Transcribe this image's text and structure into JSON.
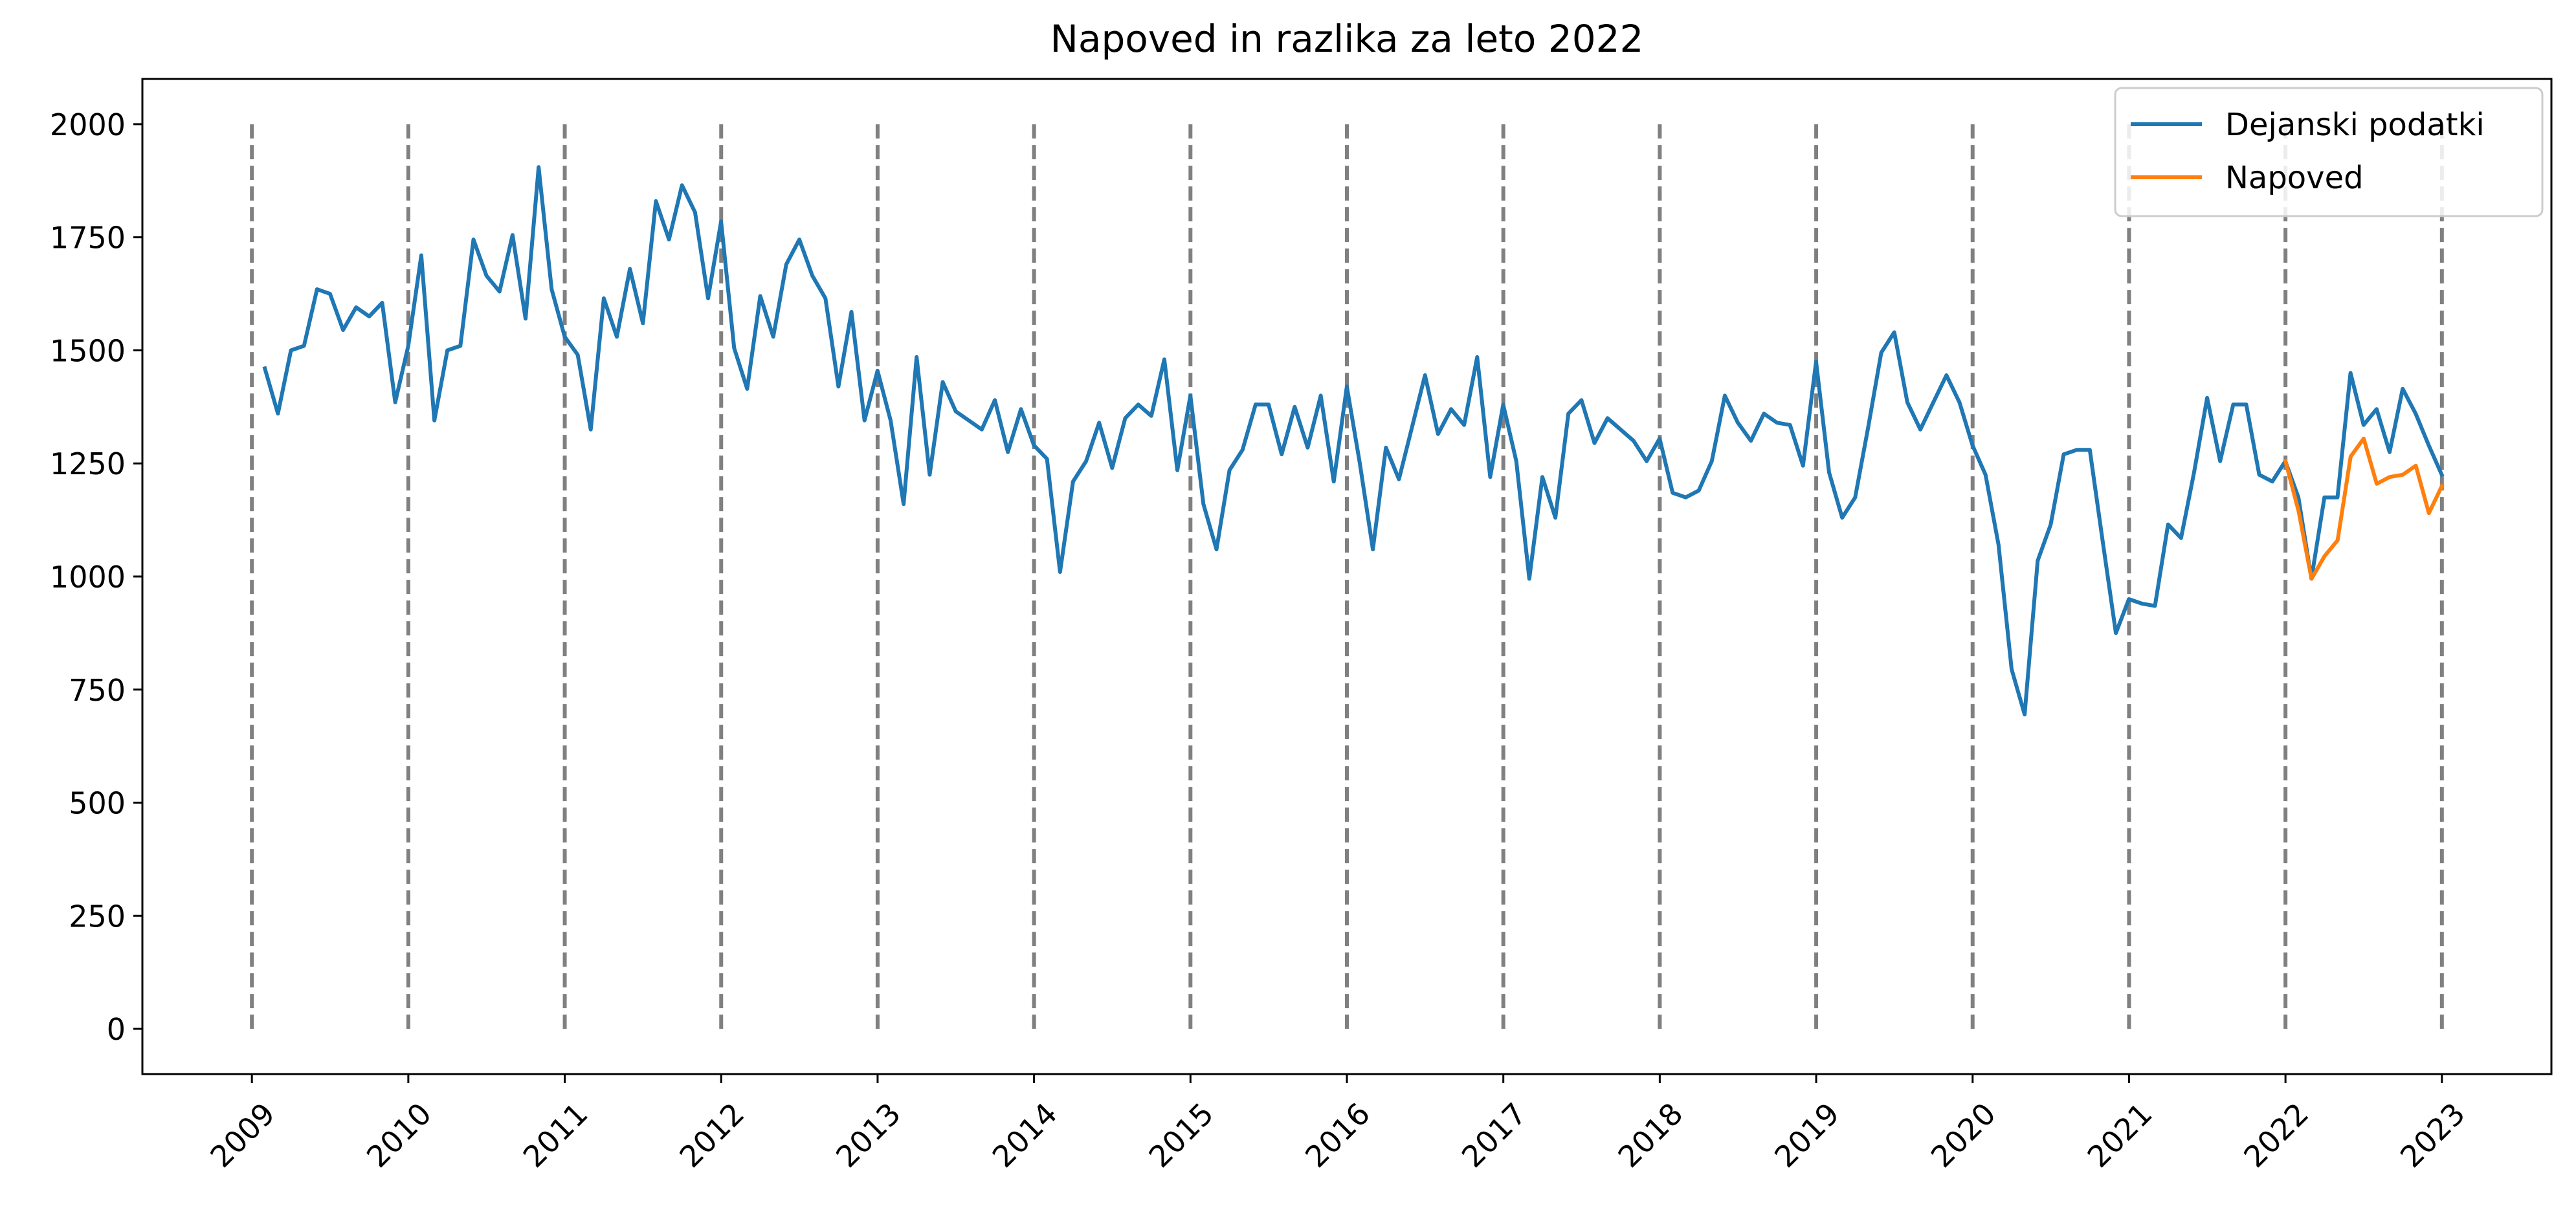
{
  "chart_data": {
    "type": "line",
    "title": "Napoved in razlika za leto 2022",
    "xlabel": "",
    "ylabel": "",
    "xlim": [
      2008.3,
      2023.7
    ],
    "ylim": [
      -100,
      2100
    ],
    "y_ticks": [
      0,
      250,
      500,
      750,
      1000,
      1250,
      1500,
      1750,
      2000
    ],
    "x_ticks": [
      2009,
      2010,
      2011,
      2012,
      2013,
      2014,
      2015,
      2016,
      2017,
      2018,
      2019,
      2020,
      2021,
      2022,
      2023
    ],
    "x_tick_labels": [
      "2009",
      "2010",
      "2011",
      "2012",
      "2013",
      "2014",
      "2015",
      "2016",
      "2017",
      "2018",
      "2019",
      "2020",
      "2021",
      "2022",
      "2023"
    ],
    "vlines": {
      "x": [
        2009,
        2010,
        2011,
        2012,
        2013,
        2014,
        2015,
        2016,
        2017,
        2018,
        2019,
        2020,
        2021,
        2022,
        2023
      ],
      "ymin": 0,
      "ymax": 2000,
      "color": "#808080",
      "style": "dashed"
    },
    "grid": false,
    "legend": {
      "position": "top-right"
    },
    "series": [
      {
        "name": "Dejanski podatki",
        "color": "#1f77b4",
        "start": 2009.083,
        "step": 0.08333,
        "values": [
          1460,
          1360,
          1500,
          1510,
          1635,
          1625,
          1545,
          1595,
          1575,
          1605,
          1385,
          1510,
          1710,
          1345,
          1500,
          1510,
          1745,
          1665,
          1630,
          1755,
          1570,
          1905,
          1635,
          1530,
          1490,
          1325,
          1615,
          1530,
          1680,
          1560,
          1830,
          1745,
          1865,
          1805,
          1615,
          1785,
          1505,
          1415,
          1620,
          1530,
          1690,
          1745,
          1665,
          1615,
          1420,
          1585,
          1345,
          1455,
          1345,
          1160,
          1485,
          1225,
          1430,
          1365,
          1345,
          1325,
          1390,
          1275,
          1370,
          1290,
          1260,
          1010,
          1210,
          1255,
          1340,
          1240,
          1350,
          1380,
          1355,
          1480,
          1235,
          1400,
          1160,
          1060,
          1235,
          1280,
          1380,
          1380,
          1270,
          1375,
          1285,
          1400,
          1210,
          1420,
          1250,
          1060,
          1285,
          1215,
          1330,
          1445,
          1315,
          1370,
          1335,
          1485,
          1220,
          1380,
          1255,
          995,
          1220,
          1130,
          1360,
          1390,
          1295,
          1350,
          1325,
          1300,
          1255,
          1305,
          1185,
          1175,
          1190,
          1255,
          1400,
          1340,
          1300,
          1360,
          1340,
          1335,
          1245,
          1475,
          1230,
          1130,
          1175,
          1330,
          1495,
          1540,
          1385,
          1325,
          1385,
          1445,
          1385,
          1290,
          1225,
          1070,
          795,
          695,
          1035,
          1115,
          1270,
          1280,
          1280,
          1075,
          875,
          950,
          940,
          935,
          1115,
          1085,
          1230,
          1395,
          1255,
          1380,
          1380,
          1225,
          1210,
          1255,
          1175,
          995,
          1175,
          1175,
          1450,
          1335,
          1370,
          1275,
          1415,
          1360,
          1290,
          1225
        ]
      },
      {
        "name": "Napoved",
        "color": "#ff7f0e",
        "start": 2022.0,
        "step": 0.08333,
        "values": [
          1255,
          1145,
          995,
          1045,
          1080,
          1265,
          1305,
          1205,
          1220,
          1225,
          1245,
          1140,
          1200
        ]
      }
    ]
  }
}
